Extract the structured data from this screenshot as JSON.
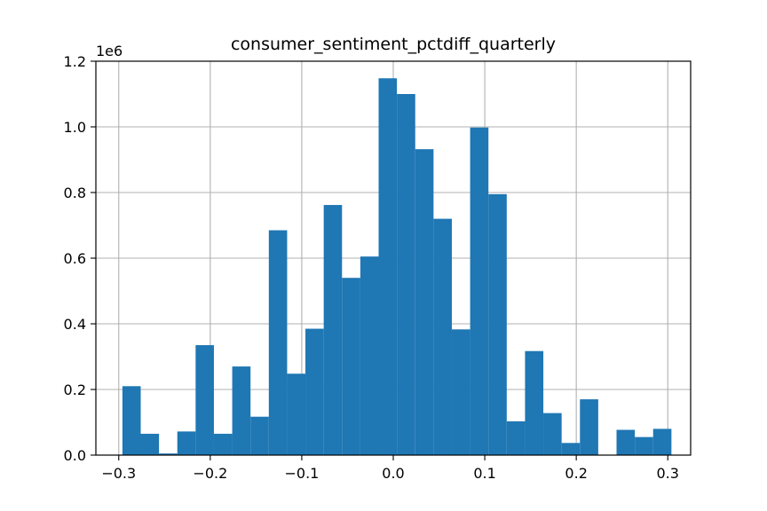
{
  "chart_data": {
    "type": "histogram",
    "title": "consumer_sentiment_pctdiff_quarterly",
    "xlabel": "",
    "ylabel": "",
    "y_offset_label": "1e6",
    "xlim": [
      -0.325,
      0.325
    ],
    "ylim": [
      0,
      1.2
    ],
    "x_ticks": [
      -0.3,
      -0.2,
      -0.1,
      0.0,
      0.1,
      0.2,
      0.3
    ],
    "x_tick_labels": [
      "−0.3",
      "−0.2",
      "−0.1",
      "0.0",
      "0.1",
      "0.2",
      "0.3"
    ],
    "y_ticks": [
      0,
      0.2,
      0.4,
      0.6,
      0.8,
      1.0,
      1.2
    ],
    "y_tick_labels": [
      "0.0",
      "0.2",
      "0.4",
      "0.6",
      "0.8",
      "1.0",
      "1.2"
    ],
    "grid": true,
    "bar_color": "#1f77b4",
    "bins": [
      {
        "x0": -0.296,
        "x1": -0.276,
        "value": 0.21
      },
      {
        "x0": -0.276,
        "x1": -0.256,
        "value": 0.065
      },
      {
        "x0": -0.256,
        "x1": -0.236,
        "value": 0.005
      },
      {
        "x0": -0.236,
        "x1": -0.216,
        "value": 0.072
      },
      {
        "x0": -0.216,
        "x1": -0.196,
        "value": 0.335
      },
      {
        "x0": -0.196,
        "x1": -0.176,
        "value": 0.065
      },
      {
        "x0": -0.176,
        "x1": -0.156,
        "value": 0.27
      },
      {
        "x0": -0.156,
        "x1": -0.136,
        "value": 0.117
      },
      {
        "x0": -0.136,
        "x1": -0.116,
        "value": 0.685
      },
      {
        "x0": -0.116,
        "x1": -0.096,
        "value": 0.248
      },
      {
        "x0": -0.096,
        "x1": -0.076,
        "value": 0.385
      },
      {
        "x0": -0.076,
        "x1": -0.056,
        "value": 0.762
      },
      {
        "x0": -0.056,
        "x1": -0.036,
        "value": 0.54
      },
      {
        "x0": -0.036,
        "x1": -0.016,
        "value": 0.605
      },
      {
        "x0": -0.016,
        "x1": 0.004,
        "value": 1.148
      },
      {
        "x0": 0.004,
        "x1": 0.024,
        "value": 1.1
      },
      {
        "x0": 0.024,
        "x1": 0.044,
        "value": 0.932
      },
      {
        "x0": 0.044,
        "x1": 0.064,
        "value": 0.72
      },
      {
        "x0": 0.064,
        "x1": 0.084,
        "value": 0.383
      },
      {
        "x0": 0.084,
        "x1": 0.104,
        "value": 0.998
      },
      {
        "x0": 0.104,
        "x1": 0.124,
        "value": 0.795
      },
      {
        "x0": 0.124,
        "x1": 0.144,
        "value": 0.103
      },
      {
        "x0": 0.144,
        "x1": 0.164,
        "value": 0.317
      },
      {
        "x0": 0.164,
        "x1": 0.184,
        "value": 0.128
      },
      {
        "x0": 0.184,
        "x1": 0.204,
        "value": 0.037
      },
      {
        "x0": 0.204,
        "x1": 0.224,
        "value": 0.17
      },
      {
        "x0": 0.224,
        "x1": 0.244,
        "value": 0.0
      },
      {
        "x0": 0.244,
        "x1": 0.264,
        "value": 0.077
      },
      {
        "x0": 0.264,
        "x1": 0.284,
        "value": 0.055
      },
      {
        "x0": 0.284,
        "x1": 0.304,
        "value": 0.08
      }
    ]
  }
}
